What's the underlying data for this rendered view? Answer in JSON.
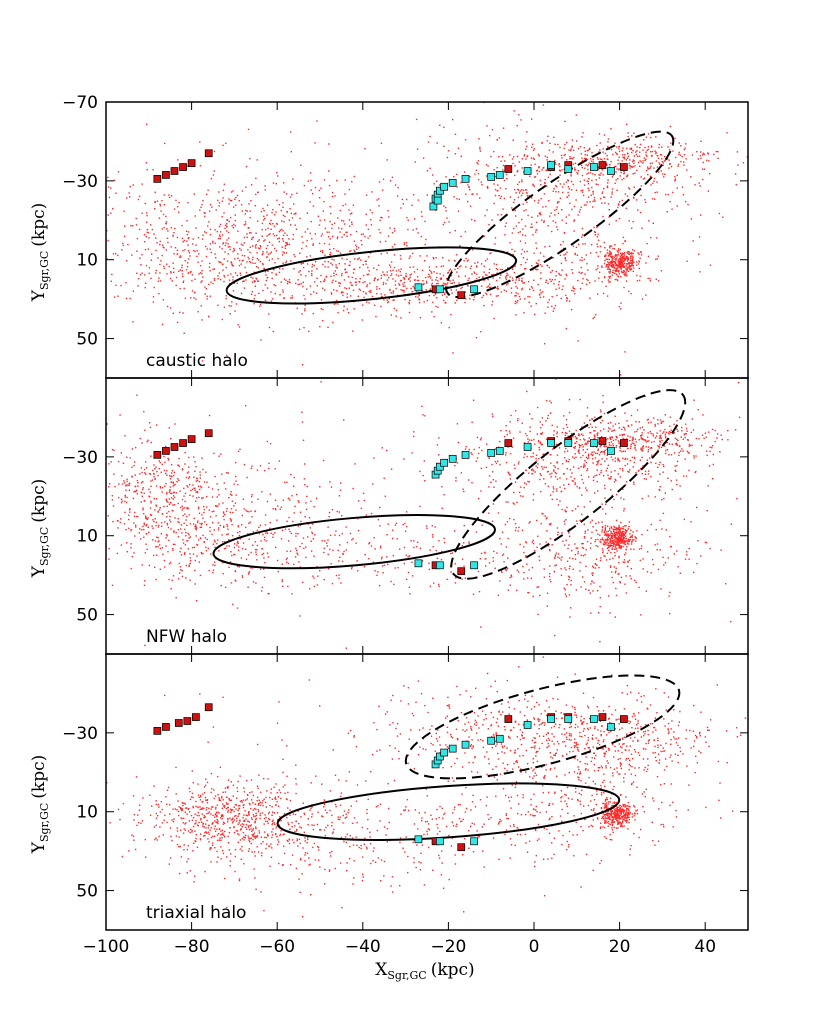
{
  "chart_data": {
    "type": "scatter",
    "xlabel": "X",
    "xlabel_sub": "Sgr,GC",
    "xlabel_unit": "(kpc)",
    "ylabel": "Y",
    "ylabel_sub": "Sgr,GC",
    "ylabel_unit": "(kpc)",
    "xlim": [
      -100,
      50
    ],
    "ylim": [
      -70,
      70
    ],
    "xticks": [
      -100,
      -80,
      -60,
      -40,
      -20,
      0,
      20,
      40
    ],
    "xtick_labels": [
      "−100",
      "−80",
      "−60",
      "−40",
      "−20",
      "0",
      "20",
      "40"
    ],
    "yticks_labeled": [
      {
        "value": -70,
        "label": "−70"
      },
      {
        "value": -30,
        "label": "−30"
      },
      {
        "value": 10,
        "label": "10"
      },
      {
        "value": 50,
        "label": "50"
      }
    ],
    "colors": {
      "particles": "#ff2a2a",
      "red_markers": "#cc1111",
      "cyan_markers": "#33e6e6",
      "marker_edge": "#000000",
      "orbit": "#000000"
    },
    "panels": [
      {
        "name": "caustic halo",
        "label": "caustic halo",
        "show_top_tick": true,
        "orbit_solid": {
          "cx": -38,
          "cy": 18,
          "rx": 34,
          "ry": 12,
          "tilt_deg": -6
        },
        "orbit_dashed": {
          "cx": 6,
          "cy": -13,
          "rx": 32,
          "ry": 16,
          "tilt_deg": -35
        },
        "red_points": [
          [
            -88,
            -31
          ],
          [
            -86,
            -33
          ],
          [
            -84,
            -35
          ],
          [
            -82,
            -37
          ],
          [
            -80,
            -39
          ],
          [
            -76,
            -44
          ],
          [
            -6,
            -36
          ],
          [
            4,
            -37
          ],
          [
            8,
            -38
          ],
          [
            16,
            -38
          ],
          [
            21,
            -37
          ],
          [
            -23,
            25
          ],
          [
            -17,
            28
          ]
        ],
        "cyan_points": [
          [
            -23,
            -21
          ],
          [
            -22.5,
            -23
          ],
          [
            -22,
            -25
          ],
          [
            -21,
            -27
          ],
          [
            -19,
            -29
          ],
          [
            -16,
            -31
          ],
          [
            -10,
            -32
          ],
          [
            -8,
            -33
          ],
          [
            -1.5,
            -35
          ],
          [
            4,
            -38
          ],
          [
            8,
            -36
          ],
          [
            14,
            -37
          ],
          [
            18,
            -35
          ],
          [
            -27,
            24
          ],
          [
            -22,
            25
          ],
          [
            -14,
            25
          ],
          [
            -23.5,
            -17
          ],
          [
            -22.5,
            -20
          ]
        ],
        "clouds": [
          {
            "cx": -68,
            "cy": 2,
            "sx": 22,
            "sy": 18,
            "n": 1000
          },
          {
            "cx": -25,
            "cy": 22,
            "sx": 18,
            "sy": 6,
            "n": 450
          },
          {
            "cx": 5,
            "cy": -28,
            "sx": 16,
            "sy": 14,
            "n": 550
          },
          {
            "cx": 20,
            "cy": -42,
            "sx": 11,
            "sy": 5,
            "n": 280
          },
          {
            "cx": 5,
            "cy": 15,
            "sx": 14,
            "sy": 10,
            "n": 250
          },
          {
            "cx": 20,
            "cy": 11,
            "sx": 1.8,
            "sy": 3.5,
            "n": 320
          },
          {
            "cx": -40,
            "cy": 0,
            "sx": 45,
            "sy": 35,
            "n": 180
          }
        ]
      },
      {
        "name": "NFW halo",
        "label": "NFW halo",
        "show_top_tick": false,
        "orbit_solid": {
          "cx": -42,
          "cy": 13,
          "rx": 33,
          "ry": 12,
          "tilt_deg": -5
        },
        "orbit_dashed": {
          "cx": 8,
          "cy": -16,
          "rx": 34,
          "ry": 19,
          "tilt_deg": -38
        },
        "red_points": [
          [
            -88,
            -31
          ],
          [
            -86,
            -33
          ],
          [
            -84,
            -35
          ],
          [
            -82,
            -37
          ],
          [
            -80,
            -39
          ],
          [
            -76,
            -42
          ],
          [
            -6,
            -37
          ],
          [
            4,
            -38
          ],
          [
            8,
            -38
          ],
          [
            16,
            -38
          ],
          [
            21,
            -37
          ],
          [
            -23,
            25
          ],
          [
            -17,
            28
          ]
        ],
        "cyan_points": [
          [
            -23,
            -21
          ],
          [
            -22.5,
            -23
          ],
          [
            -22,
            -25
          ],
          [
            -21,
            -27
          ],
          [
            -19,
            -29
          ],
          [
            -16,
            -31
          ],
          [
            -10,
            -32
          ],
          [
            -8,
            -33
          ],
          [
            -1.5,
            -35
          ],
          [
            4,
            -37
          ],
          [
            8,
            -37
          ],
          [
            14,
            -37
          ],
          [
            18,
            -33
          ],
          [
            -27,
            24
          ],
          [
            -22,
            25
          ],
          [
            -14,
            25
          ]
        ],
        "clouds": [
          {
            "cx": -88,
            "cy": -14,
            "sx": 8,
            "sy": 14,
            "n": 350
          },
          {
            "cx": -72,
            "cy": 8,
            "sx": 14,
            "sy": 14,
            "n": 500
          },
          {
            "cx": -30,
            "cy": 20,
            "sx": 20,
            "sy": 10,
            "n": 200
          },
          {
            "cx": 10,
            "cy": -30,
            "sx": 15,
            "sy": 12,
            "n": 600
          },
          {
            "cx": 24,
            "cy": -40,
            "sx": 10,
            "sy": 5,
            "n": 280
          },
          {
            "cx": 14,
            "cy": 20,
            "sx": 12,
            "sy": 12,
            "n": 320
          },
          {
            "cx": 19,
            "cy": 11,
            "sx": 1.8,
            "sy": 3.2,
            "n": 320
          },
          {
            "cx": -40,
            "cy": -5,
            "sx": 45,
            "sy": 35,
            "n": 160
          }
        ]
      },
      {
        "name": "triaxial halo",
        "label": "triaxial halo",
        "show_top_tick": false,
        "orbit_solid": {
          "cx": -20,
          "cy": 10,
          "rx": 40,
          "ry": 13,
          "tilt_deg": -4
        },
        "orbit_dashed": {
          "cx": 2,
          "cy": -33,
          "rx": 33,
          "ry": 19,
          "tilt_deg": -15
        },
        "red_points": [
          [
            -88,
            -31
          ],
          [
            -86,
            -33
          ],
          [
            -83,
            -35
          ],
          [
            -81,
            -36
          ],
          [
            -79,
            -38
          ],
          [
            -76,
            -43
          ],
          [
            -6,
            -37
          ],
          [
            4,
            -38
          ],
          [
            8,
            -38
          ],
          [
            16,
            -38
          ],
          [
            21,
            -37
          ],
          [
            -23,
            25
          ],
          [
            -17,
            28
          ]
        ],
        "cyan_points": [
          [
            -23,
            -14
          ],
          [
            -22.5,
            -16
          ],
          [
            -22,
            -18
          ],
          [
            -21,
            -20
          ],
          [
            -19,
            -22
          ],
          [
            -16,
            -24
          ],
          [
            -10,
            -26
          ],
          [
            -8,
            -27
          ],
          [
            -1.5,
            -34
          ],
          [
            4,
            -37
          ],
          [
            8,
            -37
          ],
          [
            14,
            -37
          ],
          [
            18,
            -33
          ],
          [
            -27,
            24
          ],
          [
            -22,
            25
          ],
          [
            -14,
            25
          ]
        ],
        "clouds": [
          {
            "cx": -72,
            "cy": 12,
            "sx": 9,
            "sy": 9,
            "n": 550
          },
          {
            "cx": -50,
            "cy": 22,
            "sx": 20,
            "sy": 12,
            "n": 350
          },
          {
            "cx": 0,
            "cy": -28,
            "sx": 18,
            "sy": 12,
            "n": 550
          },
          {
            "cx": 20,
            "cy": -24,
            "sx": 10,
            "sy": 12,
            "n": 250
          },
          {
            "cx": 5,
            "cy": 12,
            "sx": 16,
            "sy": 10,
            "n": 250
          },
          {
            "cx": 19,
            "cy": 11,
            "sx": 1.8,
            "sy": 3.2,
            "n": 320
          },
          {
            "cx": -40,
            "cy": 0,
            "sx": 45,
            "sy": 35,
            "n": 160
          }
        ]
      }
    ]
  }
}
